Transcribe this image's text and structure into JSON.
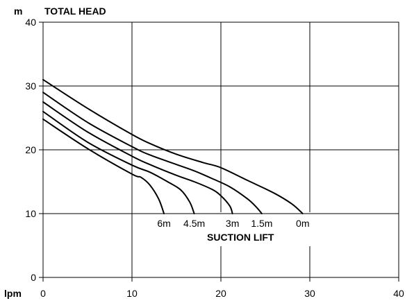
{
  "chart_data": {
    "type": "line",
    "title": "TOTAL HEAD",
    "y_unit": "m",
    "x_unit": "lpm",
    "xlim": [
      0,
      40
    ],
    "ylim": [
      0,
      40
    ],
    "x_ticks": [
      0,
      10,
      20,
      30,
      40
    ],
    "y_ticks": [
      0,
      10,
      20,
      30,
      40
    ],
    "grid": true,
    "annotation": "SUCTION LIFT",
    "series": [
      {
        "name": "0m",
        "points": [
          [
            0,
            31
          ],
          [
            5,
            26.5
          ],
          [
            10,
            22.4
          ],
          [
            12,
            21
          ],
          [
            15,
            19.3
          ],
          [
            18,
            18
          ],
          [
            20,
            17.2
          ],
          [
            23,
            15.2
          ],
          [
            26,
            13.2
          ],
          [
            28,
            11.5
          ],
          [
            29.2,
            10
          ]
        ]
      },
      {
        "name": "1.5m",
        "points": [
          [
            0,
            29
          ],
          [
            5,
            24.3
          ],
          [
            10,
            20.5
          ],
          [
            12,
            19.2
          ],
          [
            15,
            17.7
          ],
          [
            17,
            16.7
          ],
          [
            19,
            15.5
          ],
          [
            21,
            14.2
          ],
          [
            23,
            12.3
          ],
          [
            24,
            11
          ],
          [
            24.6,
            10
          ]
        ]
      },
      {
        "name": "3m",
        "points": [
          [
            0,
            27.5
          ],
          [
            5,
            22.8
          ],
          [
            10,
            19
          ],
          [
            12,
            17.7
          ],
          [
            15,
            16
          ],
          [
            17,
            15
          ],
          [
            19,
            13.8
          ],
          [
            20,
            12.8
          ],
          [
            21,
            11.2
          ],
          [
            21.3,
            10
          ]
        ]
      },
      {
        "name": "4.5m",
        "points": [
          [
            0,
            26
          ],
          [
            5,
            21.2
          ],
          [
            10,
            17.6
          ],
          [
            12,
            16.5
          ],
          [
            14,
            15
          ],
          [
            15.5,
            13.7
          ],
          [
            16.5,
            11.8
          ],
          [
            17,
            10
          ]
        ]
      },
      {
        "name": "6m",
        "points": [
          [
            0,
            24.8
          ],
          [
            5,
            20.2
          ],
          [
            10,
            16.2
          ],
          [
            11,
            15.7
          ],
          [
            12,
            14.5
          ],
          [
            13,
            12.3
          ],
          [
            13.6,
            10
          ]
        ]
      }
    ]
  }
}
